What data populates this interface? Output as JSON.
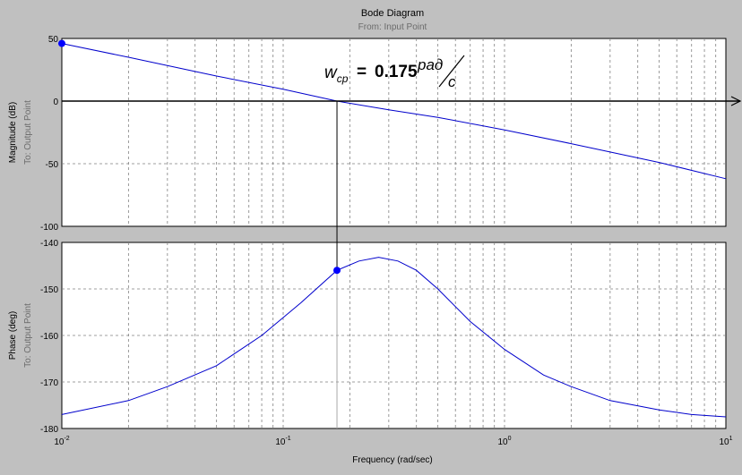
{
  "chart_data": {
    "type": "line",
    "title": "Bode Diagram",
    "subtitle": "From: Input Point",
    "xlabel": "Frequency (rad/sec)",
    "xscale": "log",
    "xlim": [
      0.01,
      10
    ],
    "xticks": [
      {
        "base": "10",
        "exp": "-2",
        "value": 0.01
      },
      {
        "base": "10",
        "exp": "-1",
        "value": 0.1
      },
      {
        "base": "10",
        "exp": "0",
        "value": 1
      },
      {
        "base": "10",
        "exp": "1",
        "value": 10
      }
    ],
    "grid": true,
    "line_color": "#0000cc",
    "panels": [
      {
        "name": "magnitude",
        "ylabel": "Magnitude (dB)",
        "ylabel2": "To: Output Point",
        "ylim": [
          -100,
          50
        ],
        "yticks": [
          50,
          0,
          -50,
          -100
        ],
        "series": [
          {
            "x": [
              0.01,
              0.02,
              0.05,
              0.1,
              0.175,
              0.3,
              0.5,
              1,
              2,
              5,
              10
            ],
            "y": [
              46,
              35,
              20,
              9.5,
              0,
              -7,
              -13,
              -23,
              -34,
              -49,
              -62
            ]
          }
        ],
        "marker": {
          "x": 0.01,
          "y": 46
        }
      },
      {
        "name": "phase",
        "ylabel": "Phase (deg)",
        "ylabel2": "To: Output Point",
        "ylim": [
          -180,
          -140
        ],
        "yticks": [
          -140,
          -150,
          -160,
          -170,
          -180
        ],
        "series": [
          {
            "x": [
              0.01,
              0.02,
              0.03,
              0.05,
              0.08,
              0.12,
              0.175,
              0.22,
              0.27,
              0.33,
              0.4,
              0.5,
              0.7,
              1,
              1.5,
              2,
              3,
              5,
              7,
              10
            ],
            "y": [
              -177,
              -174,
              -171,
              -166.5,
              -160,
              -153,
              -146,
              -144,
              -143.2,
              -144,
              -146,
              -150,
              -157,
              -163,
              -168.5,
              -171,
              -174,
              -176,
              -177,
              -177.5
            ]
          }
        ],
        "marker": {
          "x": 0.175,
          "y": -146
        }
      }
    ],
    "annotation": {
      "symbol": "w",
      "subscript": "cp",
      "equals": "=",
      "value": "0.175",
      "unit_numerator": "рад",
      "unit_denominator": "c",
      "x": 0.175
    }
  }
}
